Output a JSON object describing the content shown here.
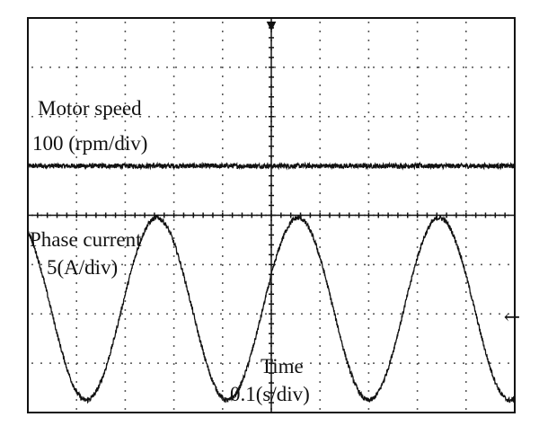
{
  "chart_data": {
    "type": "line",
    "grid": true,
    "divisions": {
      "x": 10,
      "y": 8
    },
    "x_axis": {
      "label": "Time",
      "scale": "0.1(s/div)",
      "range_div": [
        0,
        10
      ]
    },
    "series": [
      {
        "name": "Motor speed",
        "scale": "100 (rpm/div)",
        "shape": "flat with noise",
        "y_level_div": 1.0,
        "noise_div": 0.05
      },
      {
        "name": "Phase current",
        "scale": "5(A/div)",
        "shape": "sine",
        "amplitude_div": 1.85,
        "center_div": -1.9,
        "period_div": 2.9,
        "x_at_peak_div": 2.65,
        "noise_div": 0.05
      }
    ],
    "annotations": [
      {
        "text": "Motor speed"
      },
      {
        "text": "100 (rpm/div)"
      },
      {
        "text": "Phase current"
      },
      {
        "text": "5(A/div)"
      },
      {
        "text": "Time"
      },
      {
        "text": "0.1(s/div)"
      }
    ],
    "marker_trigger_top": "▼",
    "marker_level_right": "←"
  }
}
